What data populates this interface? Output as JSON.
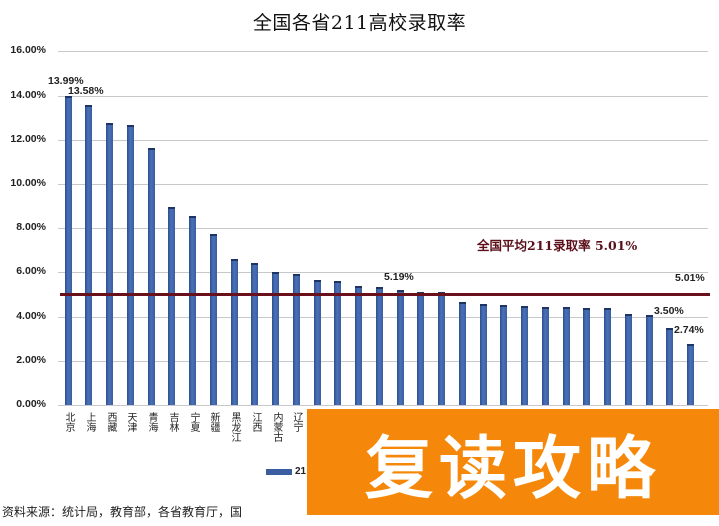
{
  "chart_data": {
    "type": "bar",
    "title": "全国各省211高校录取率",
    "xlabel": "",
    "ylabel": "",
    "ylim": [
      0,
      16
    ],
    "y_ticks": [
      "0.00%",
      "2.00%",
      "4.00%",
      "6.00%",
      "8.00%",
      "10.00%",
      "12.00%",
      "14.00%",
      "16.00%"
    ],
    "grid": true,
    "legend": {
      "position": "bottom",
      "entries": [
        "211..."
      ]
    },
    "categories": [
      "北京",
      "上海",
      "西藏",
      "天津",
      "青海",
      "吉林",
      "宁夏",
      "新疆",
      "黑龙江",
      "江西",
      "内蒙古",
      "辽宁",
      "",
      "",
      "",
      "",
      "",
      "",
      "",
      "",
      "",
      "",
      "",
      "",
      "",
      "",
      "",
      "",
      "",
      "",
      ""
    ],
    "values": [
      13.99,
      13.58,
      12.76,
      12.67,
      11.63,
      8.96,
      8.55,
      7.74,
      6.61,
      6.43,
      6.02,
      5.93,
      5.66,
      5.61,
      5.38,
      5.34,
      5.19,
      5.11,
      5.11,
      4.66,
      4.57,
      4.52,
      4.48,
      4.43,
      4.43,
      4.39,
      4.39,
      4.12,
      4.07,
      3.5,
      2.74
    ],
    "data_labels": [
      {
        "index": 0,
        "text": "13.99%"
      },
      {
        "index": 1,
        "text": "13.58%"
      },
      {
        "index": 16,
        "text": "5.19%"
      },
      {
        "index": 29,
        "text": "3.50%"
      },
      {
        "index": 30,
        "text": "2.74%"
      }
    ],
    "reference_line": {
      "value": 5.01,
      "label": "5.01%",
      "annotation": "全国平均211录取率 5.01%",
      "color": "#6a0f1c"
    },
    "series": [
      {
        "name": "211录取率",
        "color": "#3a5d9f",
        "values": [
          13.99,
          13.58,
          12.76,
          12.67,
          11.63,
          8.96,
          8.55,
          7.74,
          6.61,
          6.43,
          6.02,
          5.93,
          5.66,
          5.61,
          5.38,
          5.34,
          5.19,
          5.11,
          5.11,
          4.66,
          4.57,
          4.52,
          4.48,
          4.43,
          4.43,
          4.39,
          4.39,
          4.12,
          4.07,
          3.5,
          2.74
        ]
      }
    ]
  },
  "title": "全国各省211高校录取率",
  "avg_annotation": "全国平均211录取率 5.01%",
  "avg_label": "5.01%",
  "legend_text": "21",
  "source": "资料来源：统计局，教育部，各省教育厅，国",
  "watermark": "复读攻略",
  "colors": {
    "bar": "#3a5d9f",
    "avg_line": "#6a0f1c",
    "watermark_bg": "#f5880a"
  }
}
